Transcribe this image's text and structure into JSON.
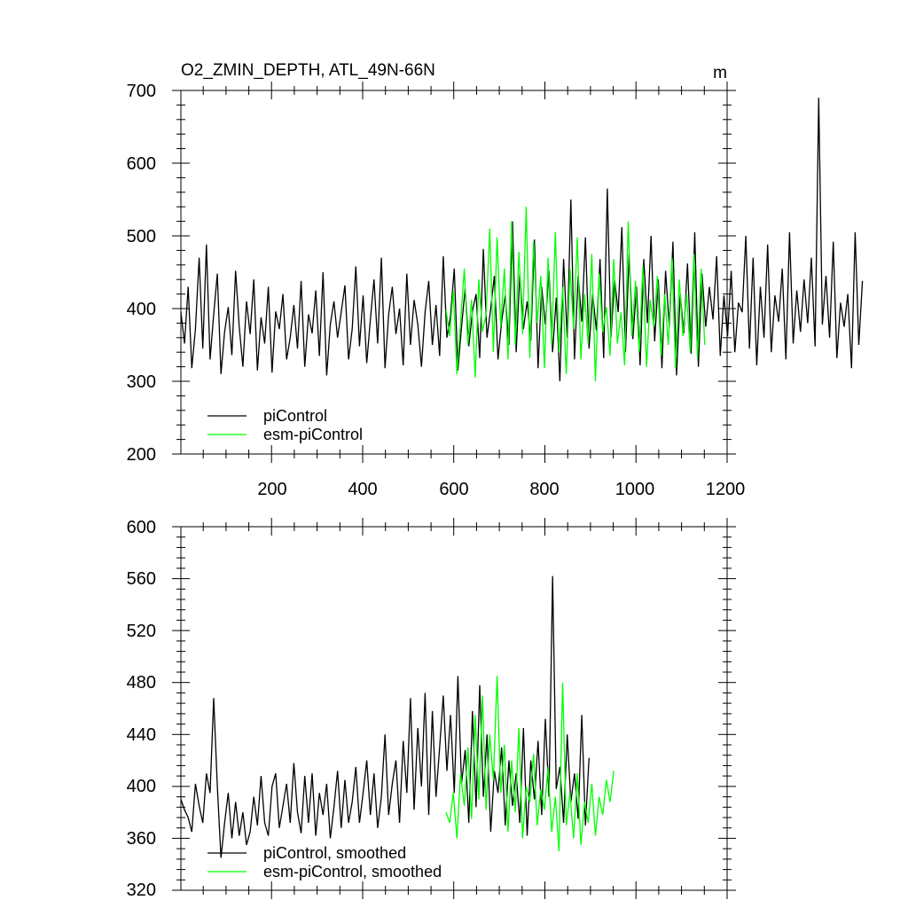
{
  "chart_data": [
    {
      "type": "line",
      "title": "O2_ZMIN_DEPTH, ATL_49N-66N",
      "units": "m",
      "xlim": [
        1,
        1200
      ],
      "ylim": [
        200,
        700
      ],
      "xticks": [
        200,
        400,
        600,
        800,
        1000,
        1200
      ],
      "yticks": [
        200,
        300,
        400,
        500,
        600,
        700
      ],
      "xtick_labels": [
        "200",
        "400",
        "600",
        "800",
        "1000",
        "1200"
      ],
      "ytick_labels": [
        "200",
        "300",
        "400",
        "500",
        "600",
        "700"
      ],
      "legend_position": "lower-left",
      "series": [
        {
          "name": "piControl",
          "color": "#000000",
          "x_start": 1,
          "x_step": 8,
          "values": [
            395,
            352,
            430,
            318,
            372,
            470,
            345,
            488,
            330,
            392,
            448,
            310,
            368,
            402,
            336,
            452,
            375,
            320,
            410,
            365,
            440,
            315,
            388,
            352,
            430,
            312,
            396,
            372,
            420,
            330,
            360,
            405,
            345,
            438,
            320,
            392,
            366,
            425,
            335,
            450,
            308,
            378,
            410,
            360,
            395,
            432,
            330,
            372,
            458,
            348,
            418,
            325,
            385,
            440,
            352,
            470,
            318,
            392,
            430,
            365,
            400,
            322,
            448,
            350,
            412,
            378,
            320,
            395,
            438,
            350,
            405,
            335,
            472,
            360,
            390,
            455,
            315,
            375,
            428,
            348,
            396,
            420,
            332,
            482,
            360,
            400,
            445,
            330,
            382,
            418,
            350,
            520,
            340,
            448,
            372,
            410,
            356,
            495,
            318,
            430,
            378,
            452,
            340,
            415,
            300,
            468,
            360,
            550,
            330,
            445,
            382,
            498,
            345,
            420,
            370,
            468,
            332,
            565,
            360,
            440,
            395,
            512,
            340,
            475,
            358,
            430,
            322,
            468,
            380,
            500,
            355,
            440,
            318,
            452,
            375,
            492,
            308,
            420,
            366,
            462,
            338,
            505,
            320,
            448,
            375,
            430,
            385,
            472,
            335,
            418,
            362,
            452,
            340,
            408,
            395,
            500,
            345,
            470,
            322,
            430,
            360,
            488,
            340,
            418,
            382,
            455,
            330,
            505,
            352,
            425,
            368,
            440,
            380,
            470,
            348,
            690,
            378,
            445,
            360,
            492,
            332,
            408,
            375,
            420,
            318,
            505,
            350,
            438
          ]
        },
        {
          "name": "esm-piControl",
          "color": "#00ff00",
          "x_start": 583,
          "x_step": 8,
          "values": [
            398,
            362,
            425,
            310,
            380,
            455,
            350,
            412,
            305,
            440,
            368,
            392,
            510,
            340,
            498,
            375,
            455,
            330,
            520,
            350,
            478,
            365,
            540,
            332,
            492,
            380,
            445,
            318,
            470,
            350,
            505,
            340,
            430,
            310,
            455,
            372,
            498,
            330,
            420,
            352,
            475,
            300,
            448,
            368,
            402,
            335,
            468,
            352,
            395,
            322,
            520,
            362,
            438,
            340,
            458,
            320,
            412,
            375,
            445,
            335,
            420,
            350,
            470,
            318,
            440,
            362,
            420,
            340,
            475,
            332,
            455,
            350
          ]
        }
      ]
    },
    {
      "type": "line",
      "title": "",
      "xlim": [
        1,
        1200
      ],
      "ylim": [
        320,
        600
      ],
      "xticks": [
        200,
        400,
        600,
        800,
        1000,
        1200
      ],
      "yticks": [
        320,
        360,
        400,
        440,
        480,
        520,
        560,
        600
      ],
      "ytick_labels": [
        "320",
        "360",
        "400",
        "440",
        "480",
        "520",
        "560",
        "600"
      ],
      "legend_position": "lower-left",
      "series": [
        {
          "name": "piControl, smoothed",
          "color": "#000000",
          "x_start": 1,
          "x_step": 8,
          "values": [
            390,
            382,
            376,
            365,
            402,
            385,
            372,
            410,
            395,
            468,
            400,
            345,
            372,
            395,
            360,
            388,
            362,
            380,
            355,
            365,
            392,
            370,
            408,
            372,
            362,
            400,
            410,
            368,
            385,
            402,
            372,
            418,
            380,
            364,
            408,
            372,
            410,
            362,
            395,
            378,
            402,
            360,
            384,
            412,
            368,
            405,
            372,
            388,
            415,
            372,
            395,
            420,
            378,
            410,
            368,
            392,
            440,
            378,
            402,
            420,
            372,
            435,
            395,
            468,
            382,
            445,
            400,
            472,
            378,
            458,
            392,
            430,
            470,
            412,
            455,
            395,
            485,
            402,
            428,
            372,
            458,
            384,
            478,
            392,
            440,
            365,
            412,
            395,
            430,
            370,
            420,
            385,
            410,
            372,
            445,
            362,
            420,
            390,
            435,
            378,
            452,
            392,
            562,
            398,
            415,
            372,
            440,
            388,
            410,
            375,
            455,
            370,
            422
          ]
        },
        {
          "name": "esm-piControl, smoothed",
          "color": "#00ff00",
          "x_start": 583,
          "x_step": 8,
          "values": [
            380,
            372,
            395,
            360,
            410,
            385,
            430,
            375,
            455,
            390,
            470,
            382,
            440,
            405,
            485,
            395,
            432,
            365,
            420,
            380,
            445,
            360,
            400,
            388,
            425,
            370,
            398,
            382,
            415,
            365,
            392,
            350,
            480,
            370,
            395,
            360,
            410,
            355,
            388,
            372,
            402,
            362,
            392,
            378,
            405,
            388,
            412
          ]
        }
      ]
    }
  ]
}
